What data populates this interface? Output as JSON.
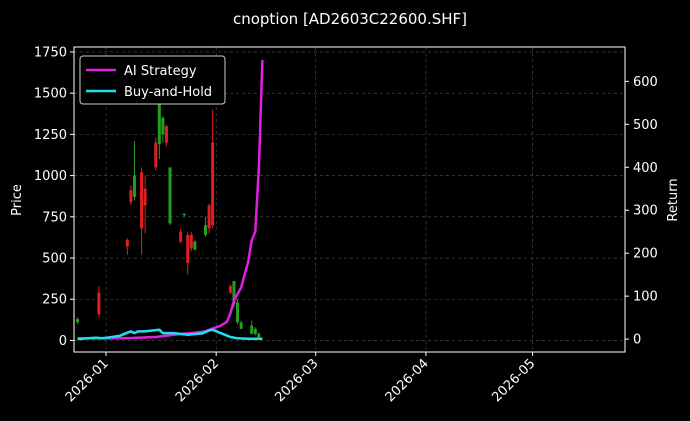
{
  "chart_data": {
    "type": "line",
    "title": "cnoption [AD2603C22600.SHF]",
    "ylabel_left": "Price",
    "ylabel_right": "Return",
    "left_ylim": [
      -70,
      1780
    ],
    "right_ylim": [
      -30,
      680
    ],
    "left_yticks": [
      "0",
      "250",
      "500",
      "750",
      "1000",
      "1250",
      "1500",
      "1750"
    ],
    "right_yticks": [
      "0",
      "100",
      "200",
      "300",
      "400",
      "500",
      "600"
    ],
    "xticks": [
      "2026-01",
      "2026-02",
      "2026-03",
      "2026-04",
      "2026-05"
    ],
    "xlim": [
      "2025-12-23",
      "2026-05-27"
    ],
    "grid": true,
    "legend_placement": "top-left",
    "colors": {
      "up": "#22a022",
      "down": "#e02020",
      "strategy": "#e020e0",
      "buyhold": "#20e0f0",
      "background": "#000000"
    },
    "candles": [
      {
        "x": "2025-12-24",
        "open": 110,
        "close": 130,
        "high": 140,
        "low": 100
      },
      {
        "x": "2025-12-30",
        "open": 290,
        "close": 160,
        "high": 330,
        "low": 140
      },
      {
        "x": "2026-01-07",
        "open": 610,
        "close": 570,
        "high": 620,
        "low": 520
      },
      {
        "x": "2026-01-08",
        "open": 910,
        "close": 840,
        "high": 940,
        "low": 820
      },
      {
        "x": "2026-01-09",
        "open": 870,
        "close": 1000,
        "high": 1210,
        "low": 850
      },
      {
        "x": "2026-01-11",
        "open": 1020,
        "close": 680,
        "high": 1050,
        "low": 520
      },
      {
        "x": "2026-01-12",
        "open": 920,
        "close": 820,
        "high": 1000,
        "low": 650
      },
      {
        "x": "2026-01-15",
        "open": 1200,
        "close": 1050,
        "high": 1230,
        "low": 1030
      },
      {
        "x": "2026-01-16",
        "open": 1190,
        "close": 1480,
        "high": 1500,
        "low": 1100
      },
      {
        "x": "2026-01-17",
        "open": 1250,
        "close": 1350,
        "high": 1360,
        "low": 1200
      },
      {
        "x": "2026-01-18",
        "open": 1300,
        "close": 1200,
        "high": 1310,
        "low": 1180
      },
      {
        "x": "2026-01-19",
        "open": 710,
        "close": 1050,
        "high": 1050,
        "low": 700
      },
      {
        "x": "2026-01-22",
        "open": 660,
        "close": 600,
        "high": 680,
        "low": 590
      },
      {
        "x": "2026-01-23",
        "open": 760,
        "close": 770,
        "high": 770,
        "low": 750
      },
      {
        "x": "2026-01-24",
        "open": 640,
        "close": 470,
        "high": 660,
        "low": 400
      },
      {
        "x": "2026-01-25",
        "open": 640,
        "close": 560,
        "high": 660,
        "low": 540
      },
      {
        "x": "2026-01-26",
        "open": 550,
        "close": 600,
        "high": 610,
        "low": 550
      },
      {
        "x": "2026-01-29",
        "open": 640,
        "close": 700,
        "high": 750,
        "low": 630
      },
      {
        "x": "2026-01-30",
        "open": 820,
        "close": 680,
        "high": 830,
        "low": 650
      },
      {
        "x": "2026-01-31",
        "open": 1200,
        "close": 700,
        "high": 1400,
        "low": 680
      },
      {
        "x": "2026-02-05",
        "open": 330,
        "close": 290,
        "high": 340,
        "low": 280
      },
      {
        "x": "2026-02-06",
        "open": 220,
        "close": 360,
        "high": 360,
        "low": 200
      },
      {
        "x": "2026-02-07",
        "open": 110,
        "close": 230,
        "high": 250,
        "low": 100
      },
      {
        "x": "2026-02-08",
        "open": 70,
        "close": 110,
        "high": 120,
        "low": 70
      },
      {
        "x": "2026-02-11",
        "open": 40,
        "close": 90,
        "high": 120,
        "low": 40
      },
      {
        "x": "2026-02-12",
        "open": 40,
        "close": 70,
        "high": 80,
        "low": 30
      },
      {
        "x": "2026-02-13",
        "open": 20,
        "close": 40,
        "high": 50,
        "low": 15
      }
    ],
    "series": [
      {
        "name": "AI Strategy",
        "x": [
          "2025-12-24",
          "2026-01-01",
          "2026-01-05",
          "2026-01-10",
          "2026-01-15",
          "2026-01-18",
          "2026-01-20",
          "2026-01-22",
          "2026-01-26",
          "2026-01-29",
          "2026-01-31",
          "2026-02-02",
          "2026-02-04",
          "2026-02-05",
          "2026-02-06",
          "2026-02-08",
          "2026-02-09",
          "2026-02-10",
          "2026-02-11",
          "2026-02-12",
          "2026-02-13",
          "2026-02-14"
        ],
        "values": [
          2,
          2,
          2,
          3,
          5,
          8,
          10,
          12,
          15,
          18,
          25,
          30,
          40,
          60,
          90,
          120,
          150,
          180,
          230,
          250,
          400,
          650
        ]
      },
      {
        "name": "Buy-and-Hold",
        "x": [
          "2025-12-24",
          "2025-12-27",
          "2025-12-29",
          "2025-12-31",
          "2026-01-02",
          "2026-01-05",
          "2026-01-07",
          "2026-01-08",
          "2026-01-09",
          "2026-01-10",
          "2026-01-12",
          "2026-01-14",
          "2026-01-16",
          "2026-01-17",
          "2026-01-18",
          "2026-01-20",
          "2026-01-24",
          "2026-01-26",
          "2026-01-28",
          "2026-01-30",
          "2026-01-31",
          "2026-02-02",
          "2026-02-05",
          "2026-02-07",
          "2026-02-10",
          "2026-02-14"
        ],
        "values": [
          0,
          2,
          3,
          2,
          4,
          8,
          15,
          18,
          14,
          18,
          18,
          20,
          22,
          14,
          14,
          14,
          10,
          12,
          13,
          20,
          22,
          15,
          5,
          2,
          1,
          1
        ]
      }
    ]
  }
}
